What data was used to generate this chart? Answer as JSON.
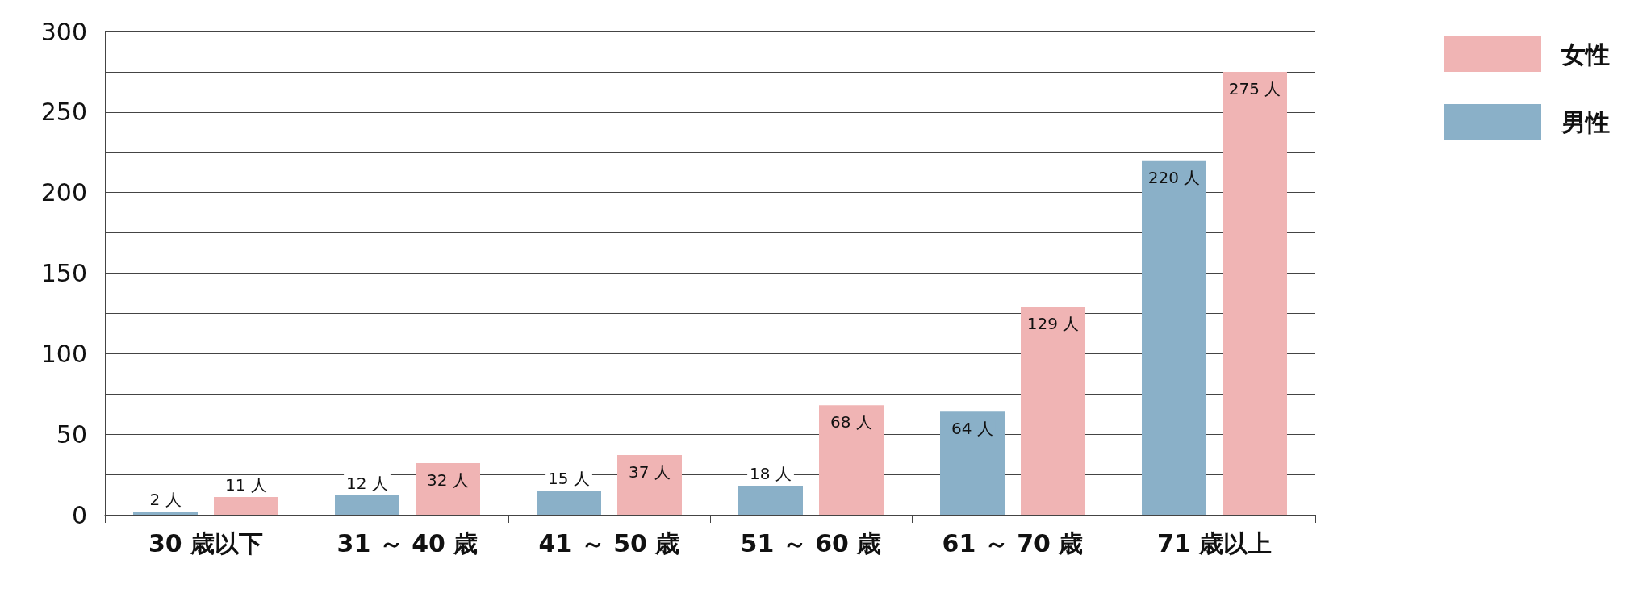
{
  "chart_data": {
    "type": "bar",
    "categories": [
      "30 歳以下",
      "31 ～ 40 歳",
      "41 ～ 50 歳",
      "51 ～ 60 歳",
      "61 ～ 70 歳",
      "71 歳以上"
    ],
    "series": [
      {
        "name": "男性",
        "color": "#8ab0c8",
        "values": [
          2,
          12,
          15,
          18,
          64,
          220
        ],
        "value_labels": [
          "2 人",
          "12 人",
          "15 人",
          "18 人",
          "64 人",
          "220 人"
        ]
      },
      {
        "name": "女性",
        "color": "#f0b4b4",
        "values": [
          11,
          32,
          37,
          68,
          129,
          275
        ],
        "value_labels": [
          "11 人",
          "32 人",
          "37 人",
          "68 人",
          "129 人",
          "275 人"
        ]
      }
    ],
    "ylim": [
      0,
      300
    ],
    "yticks": [
      0,
      {
        "value": 25,
        "label": null
      },
      50,
      {
        "value": 75,
        "label": null
      },
      100,
      {
        "value": 125,
        "label": null
      },
      150,
      {
        "value": 175,
        "label": null
      },
      200,
      {
        "value": 225,
        "label": null
      },
      250,
      {
        "value": 275,
        "label": null
      },
      300
    ],
    "grid": "y",
    "legend": "right"
  }
}
